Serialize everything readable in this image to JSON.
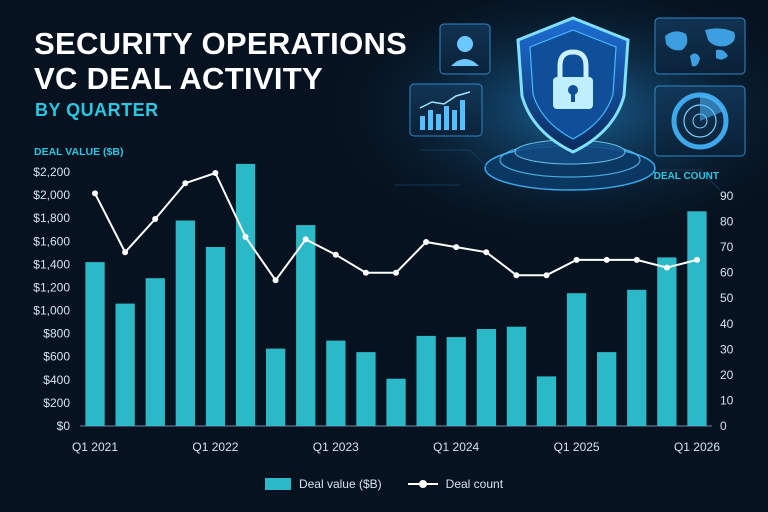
{
  "title_line1": "SECURITY OPERATIONS",
  "title_line2": "VC DEAL ACTIVITY",
  "subtitle": "BY QUARTER",
  "colors": {
    "background": "#06121f",
    "bar": "#2bb9c8",
    "line": "#ffffff",
    "accent": "#29c7e3",
    "axis_text": "#d6e3ee"
  },
  "decor_icons": [
    "shield-lock-icon",
    "user-profile-icon",
    "world-map-icon",
    "bar-chart-icon",
    "radar-icon"
  ],
  "chart_data": {
    "type": "bar",
    "categories": [
      "Q1 2021",
      "Q2 2021",
      "Q3 2021",
      "Q4 2021",
      "Q1 2022",
      "Q2 2022",
      "Q3 2022",
      "Q4 2022",
      "Q1 2023",
      "Q2 2023",
      "Q3 2023",
      "Q4 2023",
      "Q1 2024",
      "Q2 2024",
      "Q3 2024",
      "Q4 2024",
      "Q1 2025",
      "Q2 2025",
      "Q3 2025",
      "Q4 2025",
      "Q1 2026"
    ],
    "x_tick_labels": [
      "Q1 2021",
      "Q1 2022",
      "Q1 2023",
      "Q1 2024",
      "Q1 2025",
      "Q1 2026"
    ],
    "series": [
      {
        "name": "Deal value ($B)",
        "type": "bar",
        "axis": "left",
        "values": [
          1420,
          1060,
          1280,
          1780,
          1550,
          2270,
          670,
          1740,
          740,
          640,
          410,
          780,
          770,
          840,
          860,
          430,
          1150,
          640,
          1180,
          1460,
          1860
        ]
      },
      {
        "name": "Deal count",
        "type": "line",
        "axis": "right",
        "values": [
          91,
          68,
          81,
          95,
          99,
          74,
          57,
          73,
          67,
          60,
          60,
          72,
          70,
          68,
          59,
          59,
          65,
          65,
          65,
          62,
          65
        ]
      }
    ],
    "ylabel_left": "DEAL VALUE ($B)",
    "ylabel_right": "DEAL COUNT",
    "ylim_left": [
      0,
      2200
    ],
    "ylim_right": [
      0,
      90
    ],
    "yticks_left": [
      "$0",
      "$200",
      "$400",
      "$600",
      "$800",
      "$1,000",
      "$1,200",
      "$1,400",
      "$1,600",
      "$1,800",
      "$2,000",
      "$2,200"
    ],
    "yticks_right": [
      "0",
      "10",
      "20",
      "30",
      "40",
      "50",
      "60",
      "70",
      "80",
      "90"
    ],
    "legend": {
      "position": "bottom-center",
      "bar_label": "Deal value ($B)",
      "line_label": "Deal count"
    },
    "grid": false
  }
}
